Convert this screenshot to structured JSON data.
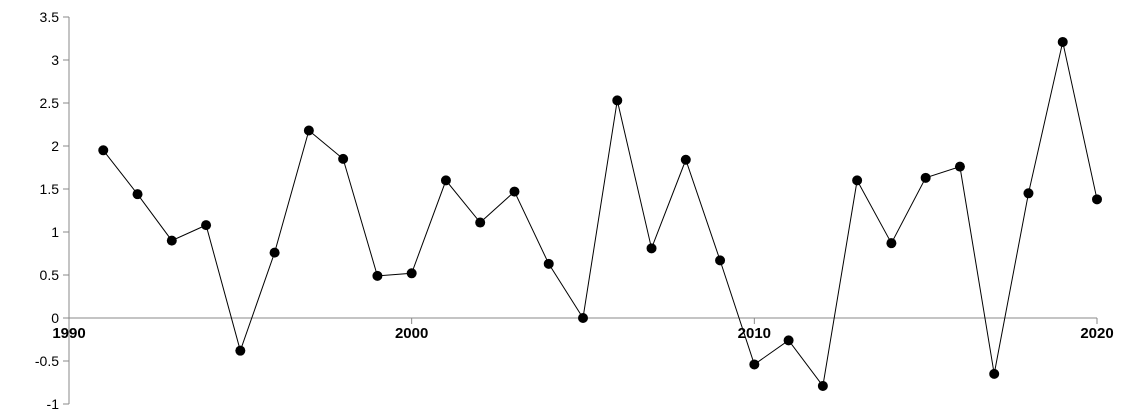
{
  "chart_data": {
    "type": "line",
    "title": "",
    "xlabel": "",
    "ylabel": "",
    "x": [
      1991,
      1992,
      1993,
      1994,
      1995,
      1996,
      1997,
      1998,
      1999,
      2000,
      2001,
      2002,
      2003,
      2004,
      2005,
      2006,
      2007,
      2008,
      2009,
      2010,
      2011,
      2012,
      2013,
      2014,
      2015,
      2016,
      2017,
      2018,
      2019,
      2020
    ],
    "series": [
      {
        "values": [
          1.95,
          1.44,
          0.9,
          1.08,
          -0.38,
          0.76,
          2.18,
          1.85,
          0.49,
          0.52,
          1.6,
          1.11,
          1.47,
          0.63,
          0.0,
          2.53,
          0.81,
          1.84,
          0.67,
          -0.54,
          -0.26,
          -0.79,
          1.6,
          0.87,
          1.63,
          1.76,
          -0.65,
          1.45,
          3.21,
          1.38
        ]
      }
    ],
    "xlim": [
      1990,
      2020
    ],
    "ylim": [
      -1,
      3.5
    ],
    "x_ticks": [
      "1990",
      "2000",
      "2010",
      "2020"
    ],
    "y_ticks": [
      "-1",
      "-0.5",
      "0",
      "0.5",
      "1",
      "1.5",
      "2",
      "2.5",
      "3",
      "3.5"
    ],
    "grid": false,
    "legend": "none",
    "line_color": "#000000",
    "marker_color": "#000000"
  }
}
